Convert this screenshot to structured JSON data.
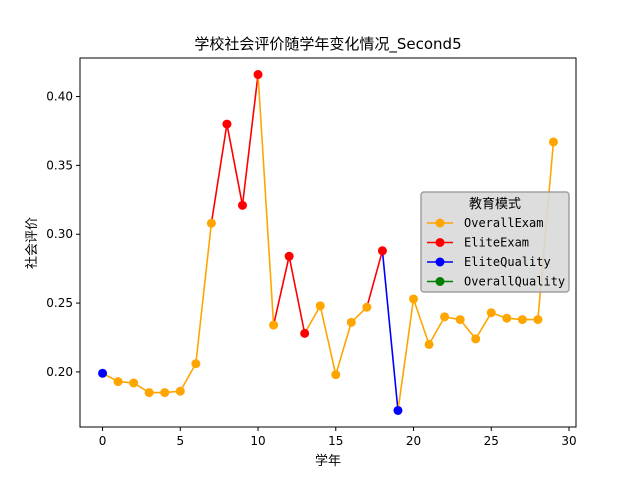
{
  "chart_data": {
    "type": "line",
    "title": "学校社会评价随学年变化情况_Second5",
    "xlabel": "学年",
    "ylabel": "社会评价",
    "xlim": [
      -1.45,
      30.45
    ],
    "ylim": [
      0.16,
      0.428
    ],
    "xticks": [
      0,
      5,
      10,
      15,
      20,
      25,
      30
    ],
    "yticks": [
      0.2,
      0.25,
      0.3,
      0.35,
      0.4
    ],
    "grid": false,
    "legend": {
      "title": "教育模式",
      "placement": "center-right",
      "entries": [
        {
          "name": "OverallExam",
          "color": "#FFA500"
        },
        {
          "name": "EliteExam",
          "color": "#FF0000"
        },
        {
          "name": "EliteQuality",
          "color": "#0000FF"
        },
        {
          "name": "OverallQuality",
          "color": "#008000"
        }
      ]
    },
    "mode_colors": {
      "OverallExam": "#FFA500",
      "EliteExam": "#FF0000",
      "EliteQuality": "#0000FF",
      "OverallQuality": "#008000"
    },
    "x": [
      0,
      1,
      2,
      3,
      4,
      5,
      6,
      7,
      8,
      9,
      10,
      11,
      12,
      13,
      14,
      15,
      16,
      17,
      18,
      19,
      20,
      21,
      22,
      23,
      24,
      25,
      26,
      27,
      28,
      29
    ],
    "values": [
      0.199,
      0.193,
      0.192,
      0.185,
      0.185,
      0.186,
      0.206,
      0.308,
      0.38,
      0.321,
      0.416,
      0.234,
      0.284,
      0.228,
      0.248,
      0.198,
      0.236,
      0.247,
      0.288,
      0.172,
      0.253,
      0.22,
      0.24,
      0.238,
      0.224,
      0.243,
      0.239,
      0.238,
      0.238,
      0.367
    ],
    "modes": [
      "EliteQuality",
      "OverallExam",
      "OverallExam",
      "OverallExam",
      "OverallExam",
      "OverallExam",
      "OverallExam",
      "OverallExam",
      "EliteExam",
      "EliteExam",
      "EliteExam",
      "OverallExam",
      "EliteExam",
      "EliteExam",
      "OverallExam",
      "OverallExam",
      "OverallExam",
      "OverallExam",
      "EliteExam",
      "EliteQuality",
      "OverallExam",
      "OverallExam",
      "OverallExam",
      "OverallExam",
      "OverallExam",
      "OverallExam",
      "OverallExam",
      "OverallExam",
      "OverallExam",
      "OverallExam"
    ]
  }
}
